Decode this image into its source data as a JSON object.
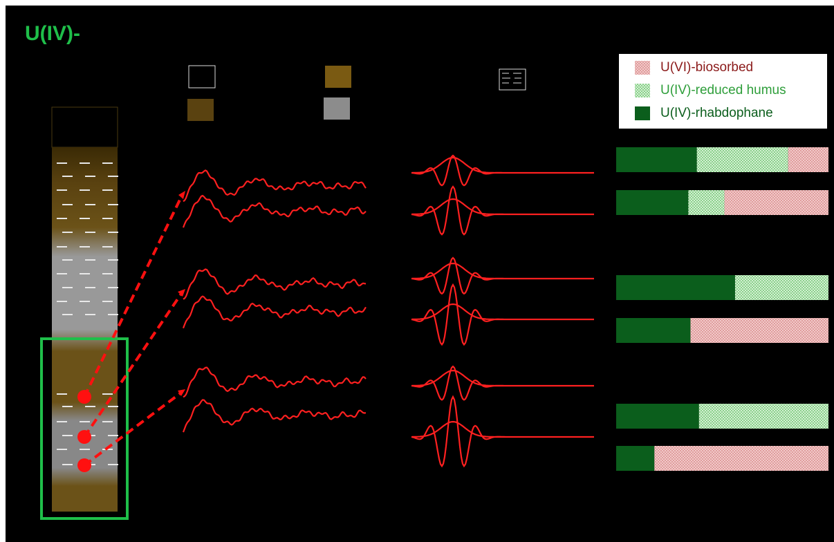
{
  "chart_data": {
    "type": "stacked-hbar",
    "title": "U(IV)-",
    "categories": [
      null,
      null,
      null,
      null,
      null,
      null
    ],
    "xlim": [
      0,
      100
    ],
    "series": [
      {
        "name": "U(VI)-biosorbed",
        "color": "url(#hatch-pink)",
        "values": [
          19,
          49,
          0,
          65,
          0,
          82
        ]
      },
      {
        "name": "U(IV)-reduced humus",
        "color": "url(#hatch-green)",
        "values": [
          43,
          17,
          44,
          0,
          61,
          0
        ]
      },
      {
        "name": "U(IV)-rhabdophane",
        "color": "#0b5e1c",
        "values": [
          38,
          34,
          56,
          35,
          39,
          18
        ]
      }
    ]
  }
}
